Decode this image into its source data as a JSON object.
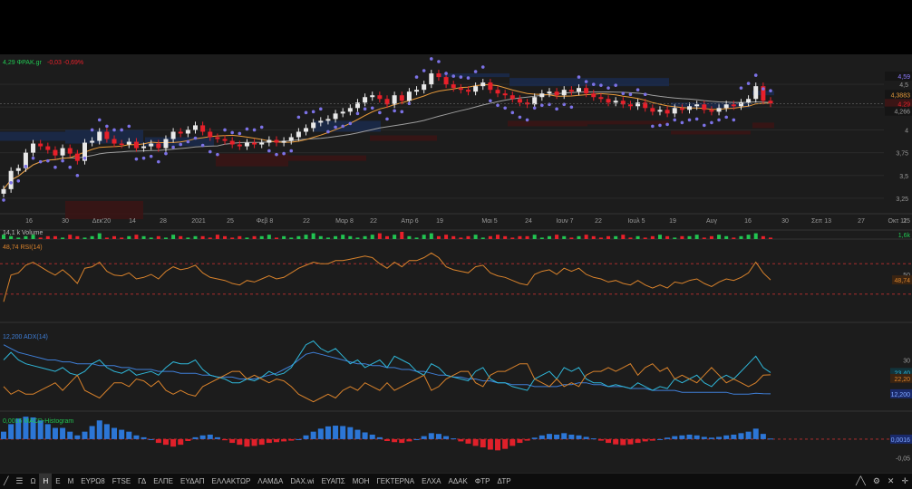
{
  "header": {
    "price": "4,29",
    "symbol": "ΦΡΑΚ.gr",
    "change": "-0,03",
    "change_pct": "-0,69%"
  },
  "colors": {
    "up": "#21c451",
    "down": "#e8202a",
    "sar_dots": "#7c72e6",
    "ma_orange": "#e89a3a",
    "ma_gray": "#9e9e9e",
    "rsi_line": "#d9822b",
    "adx_line": "#3f7fd8",
    "di_plus": "#2fb7d9",
    "di_minus": "#d9822b",
    "hist_up": "#2c76d6",
    "hist_down": "#e0202a",
    "zone_blue": "#1b2a4a",
    "zone_red": "#3a1515"
  },
  "chart_data": [
    {
      "type": "candlestick",
      "title": "ΦΡΑΚ.gr",
      "x_ticks": [
        "16",
        "30",
        "Δεκ'20",
        "14",
        "28",
        "2021",
        "25",
        "Φεβ 8",
        "22",
        "Μαρ 8",
        "22",
        "Απρ 6",
        "19",
        "Μαι 5",
        "24",
        "Ιουν 7",
        "22",
        "Ιουλ 5",
        "19",
        "Αυγ",
        "16",
        "30",
        "Σεπ 13",
        "27",
        "Οκτ 11",
        "25"
      ],
      "y_ticks": [
        "4,5",
        "4,25",
        "4",
        "3,75",
        "3,5",
        "3,25"
      ],
      "ylim": [
        3.1,
        4.75
      ],
      "price_labels": [
        "4,59",
        "4,3883",
        "4,29",
        "4,266"
      ],
      "last_price": 4.29,
      "close": [
        3.35,
        3.55,
        3.58,
        3.75,
        3.85,
        3.82,
        3.78,
        3.72,
        3.8,
        3.74,
        3.66,
        3.86,
        3.88,
        3.98,
        3.9,
        3.85,
        3.84,
        3.87,
        3.8,
        3.82,
        3.85,
        3.8,
        3.9,
        3.98,
        3.96,
        4.0,
        4.05,
        3.98,
        3.92,
        3.9,
        3.88,
        3.84,
        3.82,
        3.86,
        3.84,
        3.86,
        3.89,
        3.86,
        3.88,
        3.92,
        3.98,
        4.02,
        4.08,
        4.1,
        4.12,
        4.18,
        4.2,
        4.24,
        4.3,
        4.36,
        4.38,
        4.34,
        4.28,
        4.38,
        4.32,
        4.42,
        4.44,
        4.5,
        4.62,
        4.58,
        4.5,
        4.46,
        4.44,
        4.42,
        4.48,
        4.52,
        4.44,
        4.4,
        4.38,
        4.34,
        4.3,
        4.28,
        4.36,
        4.4,
        4.42,
        4.38,
        4.44,
        4.42,
        4.46,
        4.4,
        4.36,
        4.34,
        4.3,
        4.32,
        4.28,
        4.26,
        4.3,
        4.24,
        4.2,
        4.22,
        4.18,
        4.24,
        4.22,
        4.26,
        4.28,
        4.22,
        4.2,
        4.24,
        4.28,
        4.26,
        4.3,
        4.34,
        4.48,
        4.32,
        4.29
      ],
      "overlays": [
        "parabolic-sar",
        "ma-orange",
        "ma-gray"
      ]
    },
    {
      "type": "bar",
      "title": "Volume",
      "label_value": "14,1 k",
      "series": [
        {
          "name": "Volume",
          "values": [
            3,
            2,
            1,
            2,
            3,
            1,
            2,
            2,
            1,
            3,
            2,
            1,
            2,
            4,
            1,
            2,
            1,
            2,
            3,
            2,
            1,
            2,
            1,
            3,
            2,
            1,
            2,
            2,
            1,
            3,
            2,
            1,
            2,
            1,
            2,
            2,
            3,
            1,
            2,
            1,
            2,
            3,
            4,
            2,
            1,
            2,
            3,
            2,
            1,
            2,
            3,
            4,
            2,
            3,
            5,
            2,
            1,
            3,
            4,
            2,
            3,
            2,
            1,
            2,
            3,
            1,
            2,
            3,
            2,
            1,
            2,
            2,
            3,
            1,
            2,
            3,
            2,
            1,
            2,
            3,
            2,
            1,
            2,
            2,
            3,
            1,
            2,
            1,
            2,
            3,
            2,
            1,
            2,
            2,
            3,
            1,
            2,
            3,
            2,
            1,
            2,
            3,
            4,
            2,
            1
          ]
        }
      ],
      "axis_label": "1,6k"
    },
    {
      "type": "line",
      "title": "RSI(14)",
      "label_value": "48,74",
      "y_ticks": [
        "50"
      ],
      "ylim": [
        0,
        100
      ],
      "series": [
        {
          "name": "RSI(14)",
          "values": [
            20,
            55,
            58,
            68,
            72,
            66,
            60,
            55,
            62,
            54,
            44,
            64,
            66,
            72,
            60,
            55,
            54,
            58,
            50,
            52,
            56,
            50,
            60,
            66,
            62,
            64,
            68,
            58,
            52,
            50,
            48,
            44,
            42,
            48,
            46,
            50,
            54,
            50,
            52,
            58,
            64,
            68,
            72,
            70,
            70,
            74,
            74,
            76,
            78,
            80,
            78,
            70,
            64,
            72,
            66,
            74,
            74,
            78,
            84,
            78,
            66,
            62,
            60,
            58,
            66,
            68,
            58,
            54,
            52,
            48,
            44,
            42,
            56,
            60,
            62,
            56,
            64,
            60,
            64,
            56,
            52,
            50,
            46,
            48,
            44,
            42,
            48,
            42,
            38,
            42,
            38,
            46,
            44,
            48,
            50,
            44,
            40,
            46,
            50,
            48,
            52,
            58,
            72,
            58,
            48.74
          ]
        }
      ]
    },
    {
      "type": "line",
      "title": "ADX(14)",
      "label_value": "12,200",
      "y_ticks": [
        "30"
      ],
      "ylim": [
        5,
        45
      ],
      "value_labels": [
        "23,40",
        "22,20",
        "12,200"
      ],
      "series": [
        {
          "name": "ADX(14)",
          "values": [
            38,
            36,
            34,
            33,
            32,
            31,
            30,
            30,
            29,
            29,
            28,
            28,
            28,
            27,
            27,
            27,
            26,
            26,
            25,
            25,
            25,
            24,
            24,
            24,
            23,
            23,
            23,
            22,
            22,
            21,
            21,
            21,
            20,
            20,
            20,
            21,
            22,
            23,
            25,
            27,
            30,
            33,
            34,
            33,
            32,
            31,
            30,
            29,
            28,
            28,
            27,
            27,
            26,
            26,
            25,
            25,
            24,
            24,
            23,
            22,
            22,
            21,
            21,
            20,
            20,
            19,
            19,
            18,
            18,
            17,
            17,
            17,
            16,
            16,
            16,
            16,
            17,
            17,
            18,
            18,
            17,
            17,
            16,
            16,
            16,
            15,
            15,
            15,
            14,
            14,
            14,
            14,
            13,
            13,
            13,
            13,
            13,
            13,
            13,
            12,
            12,
            12,
            12.5,
            12.3,
            12.2
          ]
        },
        {
          "name": "DI+",
          "values": [
            30,
            34,
            30,
            28,
            27,
            26,
            25,
            24,
            26,
            23,
            22,
            24,
            28,
            30,
            26,
            24,
            23,
            25,
            22,
            23,
            24,
            22,
            26,
            29,
            28,
            28,
            30,
            25,
            22,
            21,
            20,
            18,
            18,
            20,
            19,
            21,
            24,
            22,
            23,
            26,
            32,
            38,
            40,
            36,
            34,
            36,
            32,
            28,
            30,
            26,
            28,
            30,
            26,
            32,
            30,
            28,
            24,
            22,
            28,
            26,
            22,
            21,
            20,
            19,
            24,
            26,
            20,
            18,
            18,
            16,
            15,
            14,
            20,
            22,
            24,
            20,
            26,
            24,
            26,
            20,
            18,
            18,
            16,
            17,
            16,
            15,
            18,
            16,
            14,
            16,
            15,
            20,
            18,
            20,
            22,
            18,
            16,
            20,
            22,
            20,
            24,
            28,
            32,
            26,
            23.4
          ]
        },
        {
          "name": "DI-",
          "values": [
            16,
            12,
            14,
            12,
            12,
            14,
            16,
            18,
            14,
            18,
            22,
            14,
            12,
            10,
            14,
            18,
            18,
            16,
            20,
            19,
            16,
            19,
            14,
            12,
            14,
            12,
            11,
            16,
            18,
            20,
            22,
            24,
            24,
            20,
            22,
            20,
            18,
            20,
            19,
            16,
            12,
            10,
            8,
            10,
            12,
            10,
            14,
            16,
            14,
            18,
            16,
            14,
            18,
            14,
            16,
            18,
            20,
            22,
            14,
            16,
            20,
            22,
            24,
            24,
            18,
            16,
            22,
            24,
            24,
            26,
            28,
            28,
            20,
            18,
            16,
            20,
            16,
            18,
            16,
            22,
            24,
            24,
            26,
            24,
            26,
            28,
            22,
            26,
            28,
            24,
            26,
            20,
            22,
            20,
            18,
            22,
            26,
            22,
            18,
            20,
            18,
            16,
            18,
            22,
            22.2
          ]
        }
      ]
    },
    {
      "type": "bar",
      "title": "MACD-Histogram",
      "label_value": "0,0016",
      "y_ticks": [
        "-0,05"
      ],
      "ylim": [
        -0.08,
        0.07
      ],
      "value_labels": [
        "0,0016"
      ],
      "series": [
        {
          "name": "MACD-Histogram",
          "values": [
            0.02,
            0.04,
            0.055,
            0.06,
            0.058,
            0.05,
            0.04,
            0.03,
            0.03,
            0.02,
            0.01,
            0.02,
            0.035,
            0.05,
            0.04,
            0.03,
            0.025,
            0.02,
            0.01,
            0.005,
            0.0,
            -0.01,
            -0.015,
            -0.02,
            -0.015,
            -0.005,
            0.005,
            0.01,
            0.012,
            0.005,
            -0.003,
            -0.01,
            -0.015,
            -0.02,
            -0.018,
            -0.015,
            -0.01,
            -0.008,
            -0.006,
            -0.004,
            0.0,
            0.01,
            0.02,
            0.028,
            0.034,
            0.036,
            0.035,
            0.032,
            0.025,
            0.018,
            0.012,
            0.005,
            -0.005,
            -0.008,
            -0.01,
            -0.006,
            0.0,
            0.008,
            0.016,
            0.014,
            0.008,
            0.002,
            -0.006,
            -0.012,
            -0.018,
            -0.022,
            -0.028,
            -0.03,
            -0.026,
            -0.018,
            -0.01,
            -0.004,
            0.004,
            0.01,
            0.014,
            0.012,
            0.016,
            0.012,
            0.01,
            0.006,
            0.002,
            -0.004,
            -0.01,
            -0.014,
            -0.016,
            -0.014,
            -0.01,
            -0.006,
            -0.004,
            0.0,
            0.004,
            0.008,
            0.01,
            0.012,
            0.01,
            0.006,
            0.004,
            0.006,
            0.01,
            0.012,
            0.016,
            0.02,
            0.028,
            0.014,
            0.0016
          ]
        }
      ]
    }
  ],
  "toolbar": {
    "periods": [
      "Ω",
      "Η",
      "Ε",
      "Μ"
    ],
    "active_period": "Η",
    "indices": [
      "ΕΥΡΩ8",
      "FTSE",
      "ΓΔ",
      "ΕΛΠΕ",
      "ΕΥΔΑΠ",
      "ΕΛΛΑΚΤΩΡ",
      "ΛΑΜΔΑ",
      "DAX.wi",
      "ΕΥΑΠΣ",
      "ΜΟΗ",
      "ΓΕΚΤΕΡΝΑ",
      "ΕΛΧΑ",
      "ΑΔΑΚ",
      "ΦΤΡ",
      "ΔΤΡ"
    ]
  }
}
